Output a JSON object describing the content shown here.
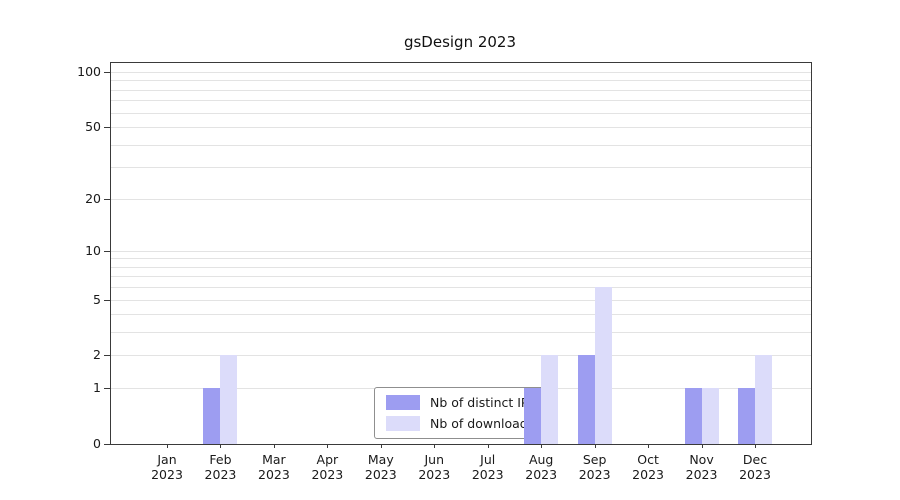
{
  "chart_data": {
    "type": "bar",
    "title": "gsDesign 2023",
    "categories": [
      "Jan 2023",
      "Feb 2023",
      "Mar 2023",
      "Apr 2023",
      "May 2023",
      "Jun 2023",
      "Jul 2023",
      "Aug 2023",
      "Sep 2023",
      "Oct 2023",
      "Nov 2023",
      "Dec 2023"
    ],
    "x_tick_months": [
      "Jan",
      "Feb",
      "Mar",
      "Apr",
      "May",
      "Jun",
      "Jul",
      "Aug",
      "Sep",
      "Oct",
      "Nov",
      "Dec"
    ],
    "x_tick_year": "2023",
    "series": [
      {
        "name": "Nb of distinct IPs",
        "color": "#9d9df1",
        "values": [
          0,
          1,
          0,
          0,
          0,
          0,
          0,
          1,
          2,
          0,
          1,
          1
        ]
      },
      {
        "name": "Nb of downloads",
        "color": "#dcdcfa",
        "values": [
          0,
          2,
          0,
          0,
          0,
          0,
          0,
          2,
          6,
          0,
          1,
          2
        ]
      }
    ],
    "yscale": "log1p",
    "ylim": [
      0,
      112
    ],
    "yticks": [
      0,
      1,
      2,
      5,
      10,
      20,
      50,
      100
    ],
    "grid_values": [
      1,
      2,
      3,
      4,
      5,
      6,
      7,
      8,
      9,
      10,
      20,
      30,
      40,
      50,
      60,
      70,
      80,
      90,
      100
    ],
    "grid": true,
    "legend_position": "inside-bottom-center",
    "colors": {
      "grid": "#e3e3e3",
      "axis": "#3a3a3a",
      "text": "#1a1a1a",
      "background": "#ffffff"
    }
  }
}
